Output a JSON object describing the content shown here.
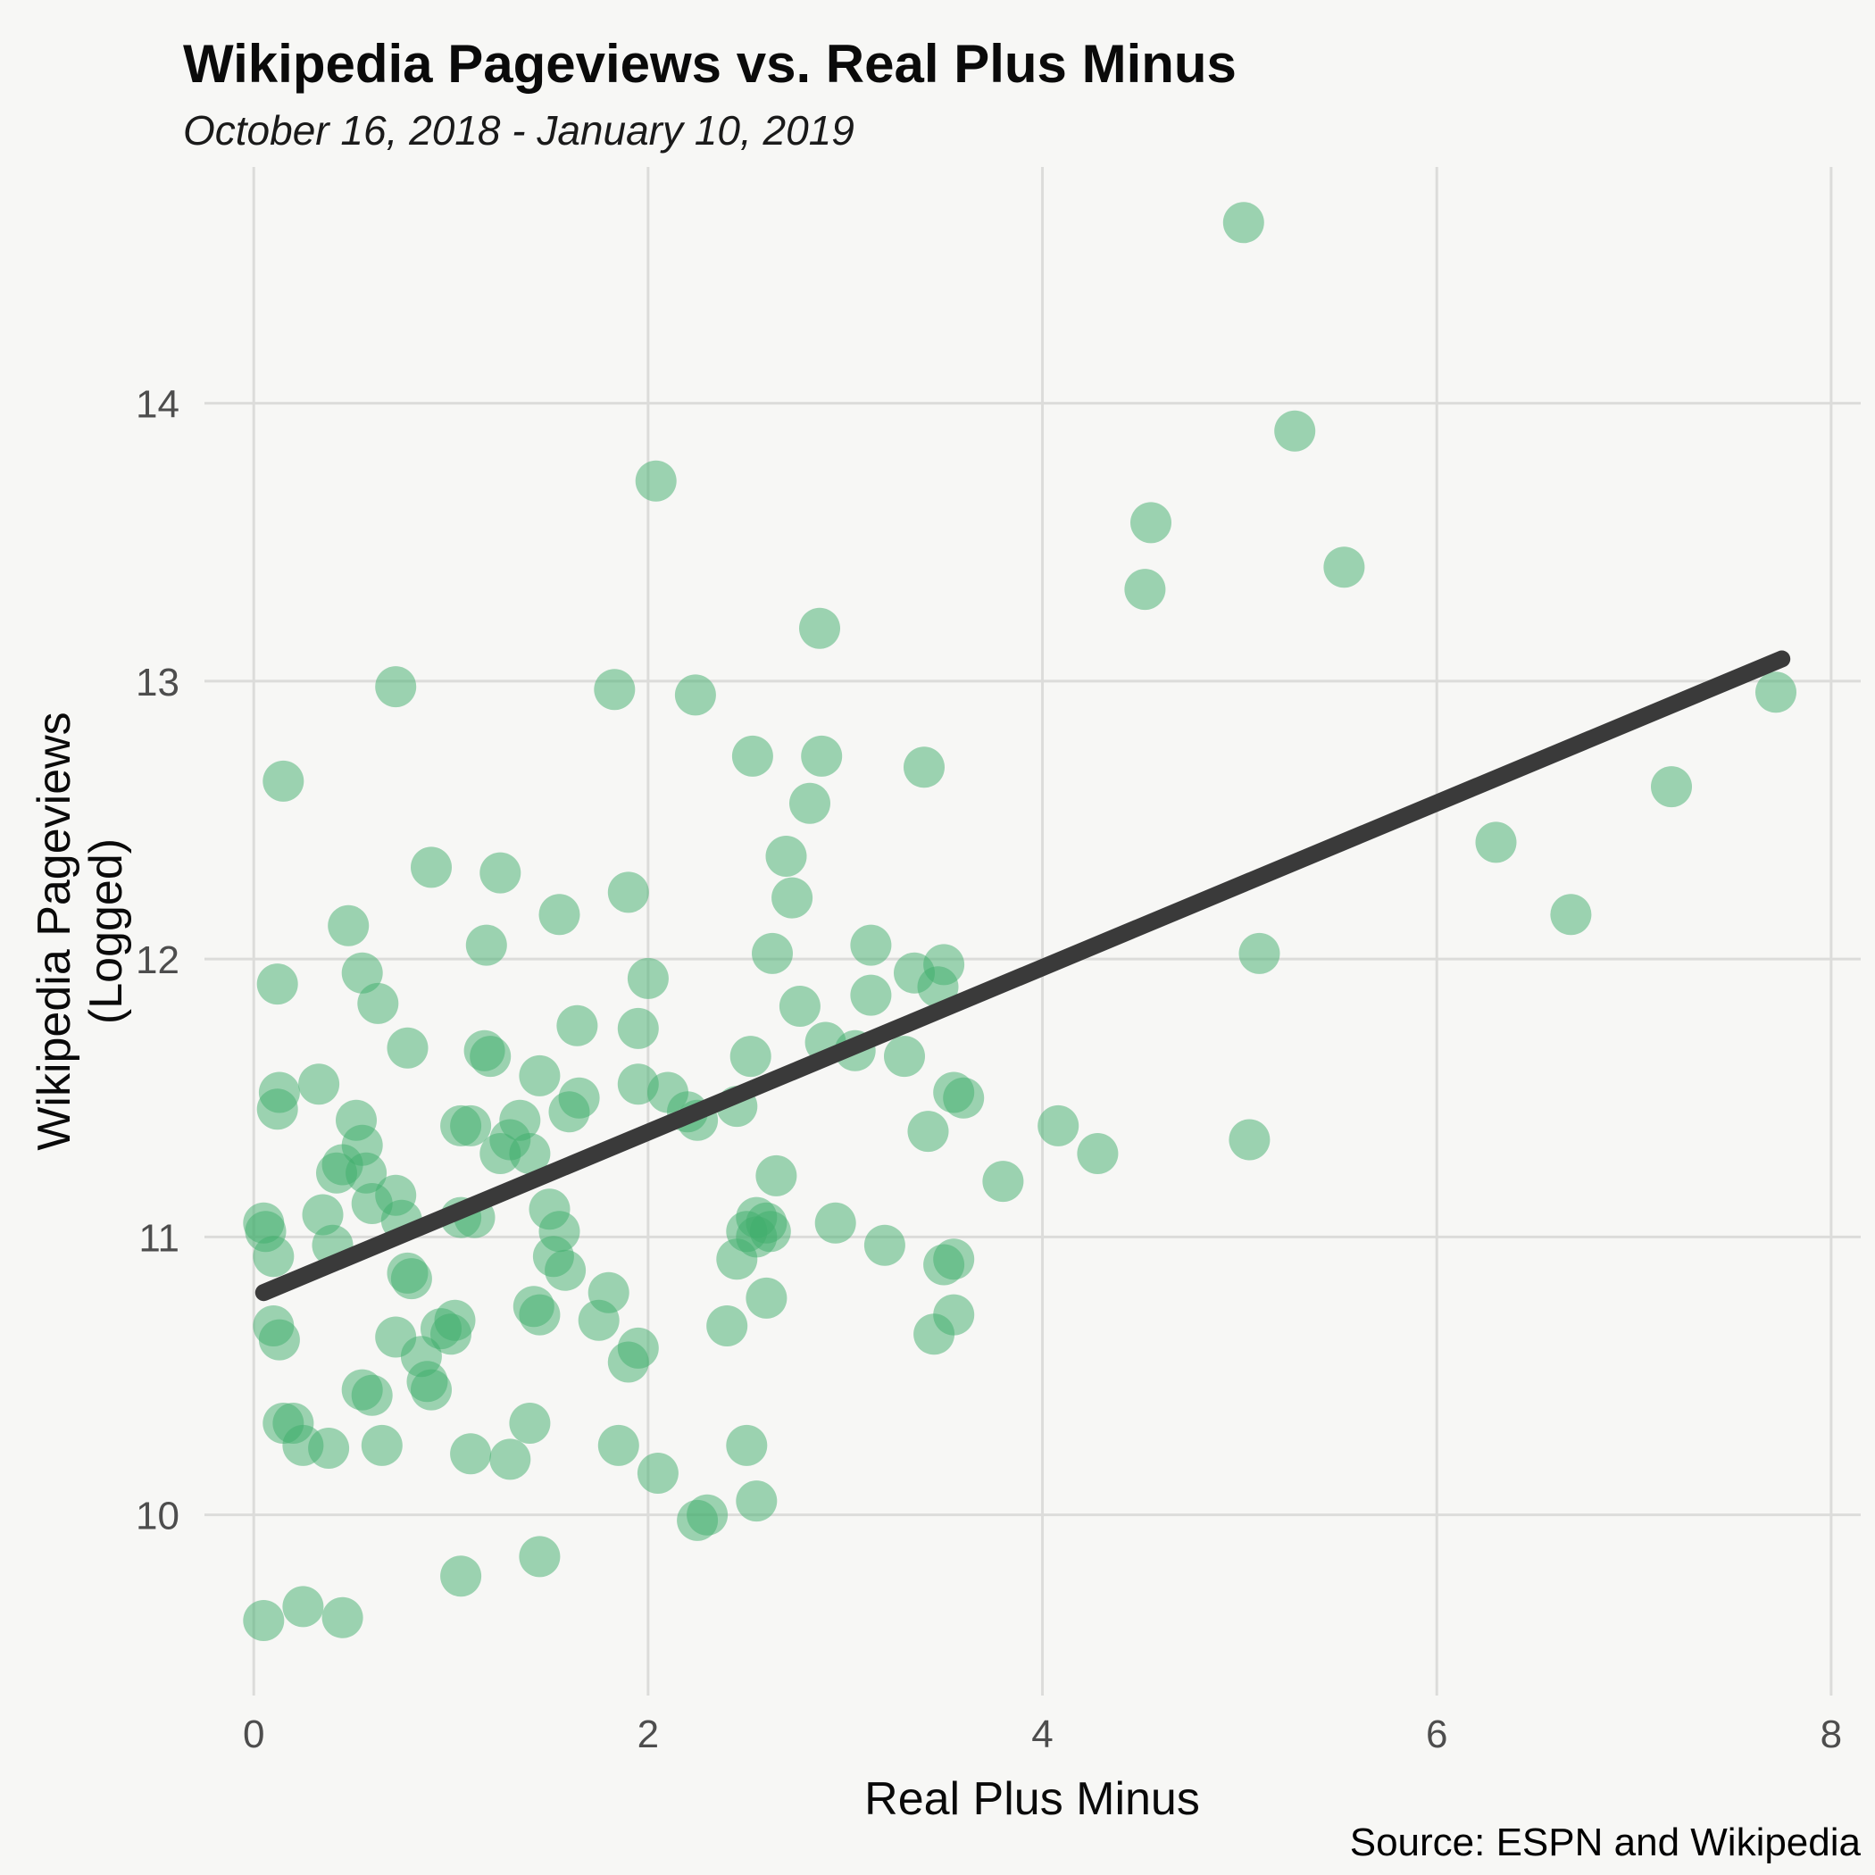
{
  "page": {
    "background": "#f7f7f5",
    "grid_color": "#dcdcda"
  },
  "chart_data": {
    "type": "scatter",
    "title": "Wikipedia Pageviews vs. Real Plus Minus",
    "subtitle": "October 16, 2018 - January 10, 2019",
    "xlabel": "Real Plus Minus",
    "ylabel_line1": "Wikipedia Pageviews",
    "ylabel_line2": "(Logged)",
    "caption": "Source: ESPN and Wikipedia",
    "legend": "none",
    "grid": true,
    "xlim": [
      -0.25,
      8.15
    ],
    "ylim": [
      9.35,
      14.85
    ],
    "x_ticks": [
      0,
      2,
      4,
      6,
      8
    ],
    "y_ticks": [
      10,
      11,
      12,
      13,
      14
    ],
    "point_color": "#3fae6b",
    "point_opacity": 0.5,
    "point_radius": 23,
    "trend_line": {
      "color": "#3a3a3a",
      "width": 19,
      "x_start": 0.05,
      "y_start": 10.8,
      "x_end": 7.75,
      "y_end": 13.08
    },
    "points": [
      [
        5.02,
        14.65
      ],
      [
        5.28,
        13.9
      ],
      [
        2.04,
        13.72
      ],
      [
        4.55,
        13.57
      ],
      [
        5.53,
        13.41
      ],
      [
        4.52,
        13.33
      ],
      [
        2.87,
        13.19
      ],
      [
        0.72,
        12.98
      ],
      [
        1.83,
        12.97
      ],
      [
        2.24,
        12.95
      ],
      [
        7.72,
        12.96
      ],
      [
        2.53,
        12.73
      ],
      [
        2.88,
        12.73
      ],
      [
        3.4,
        12.69
      ],
      [
        0.15,
        12.64
      ],
      [
        7.19,
        12.62
      ],
      [
        2.82,
        12.56
      ],
      [
        6.3,
        12.42
      ],
      [
        0.9,
        12.33
      ],
      [
        1.25,
        12.31
      ],
      [
        2.7,
        12.37
      ],
      [
        2.73,
        12.22
      ],
      [
        1.9,
        12.24
      ],
      [
        6.68,
        12.16
      ],
      [
        1.55,
        12.16
      ],
      [
        0.48,
        12.12
      ],
      [
        1.18,
        12.05
      ],
      [
        3.13,
        12.05
      ],
      [
        2.63,
        12.02
      ],
      [
        5.1,
        12.02
      ],
      [
        3.5,
        11.98
      ],
      [
        0.55,
        11.95
      ],
      [
        0.12,
        11.91
      ],
      [
        2.0,
        11.93
      ],
      [
        0.63,
        11.84
      ],
      [
        2.77,
        11.83
      ],
      [
        3.47,
        11.9
      ],
      [
        3.13,
        11.87
      ],
      [
        1.95,
        11.75
      ],
      [
        1.64,
        11.76
      ],
      [
        0.78,
        11.68
      ],
      [
        1.17,
        11.67
      ],
      [
        2.9,
        11.7
      ],
      [
        3.05,
        11.67
      ],
      [
        3.3,
        11.65
      ],
      [
        1.2,
        11.65
      ],
      [
        2.52,
        11.65
      ],
      [
        1.45,
        11.58
      ],
      [
        0.33,
        11.55
      ],
      [
        1.95,
        11.55
      ],
      [
        2.1,
        11.52
      ],
      [
        3.6,
        11.5
      ],
      [
        1.6,
        11.45
      ],
      [
        1.65,
        11.5
      ],
      [
        0.13,
        11.52
      ],
      [
        0.12,
        11.46
      ],
      [
        2.2,
        11.45
      ],
      [
        2.25,
        11.42
      ],
      [
        0.52,
        11.42
      ],
      [
        1.05,
        11.4
      ],
      [
        1.1,
        11.4
      ],
      [
        1.35,
        11.42
      ],
      [
        4.08,
        11.4
      ],
      [
        2.45,
        11.47
      ],
      [
        0.55,
        11.33
      ],
      [
        1.3,
        11.35
      ],
      [
        1.4,
        11.3
      ],
      [
        5.05,
        11.35
      ],
      [
        4.28,
        11.3
      ],
      [
        0.42,
        11.23
      ],
      [
        0.45,
        11.26
      ],
      [
        0.57,
        11.23
      ],
      [
        1.25,
        11.3
      ],
      [
        2.65,
        11.22
      ],
      [
        3.8,
        11.2
      ],
      [
        0.72,
        11.15
      ],
      [
        0.6,
        11.12
      ],
      [
        0.35,
        11.08
      ],
      [
        1.05,
        11.07
      ],
      [
        1.12,
        11.07
      ],
      [
        0.75,
        11.06
      ],
      [
        2.55,
        11.07
      ],
      [
        0.05,
        11.05
      ],
      [
        0.06,
        11.02
      ],
      [
        2.6,
        11.05
      ],
      [
        2.62,
        11.02
      ],
      [
        1.5,
        11.1
      ],
      [
        1.55,
        11.02
      ],
      [
        2.55,
        11.0
      ],
      [
        3.2,
        10.97
      ],
      [
        0.4,
        10.97
      ],
      [
        0.1,
        10.93
      ],
      [
        1.52,
        10.93
      ],
      [
        2.45,
        10.92
      ],
      [
        3.55,
        10.92
      ],
      [
        1.58,
        10.88
      ],
      [
        0.78,
        10.87
      ],
      [
        0.8,
        10.85
      ],
      [
        1.42,
        10.75
      ],
      [
        1.45,
        10.72
      ],
      [
        3.55,
        10.72
      ],
      [
        2.6,
        10.78
      ],
      [
        0.1,
        10.68
      ],
      [
        0.95,
        10.67
      ],
      [
        1.0,
        10.65
      ],
      [
        1.02,
        10.7
      ],
      [
        0.13,
        10.63
      ],
      [
        0.72,
        10.64
      ],
      [
        1.75,
        10.7
      ],
      [
        1.8,
        10.8
      ],
      [
        2.4,
        10.68
      ],
      [
        0.85,
        10.57
      ],
      [
        1.9,
        10.55
      ],
      [
        1.95,
        10.6
      ],
      [
        0.88,
        10.48
      ],
      [
        0.9,
        10.45
      ],
      [
        0.55,
        10.45
      ],
      [
        0.6,
        10.43
      ],
      [
        0.15,
        10.33
      ],
      [
        0.2,
        10.33
      ],
      [
        1.4,
        10.33
      ],
      [
        0.25,
        10.25
      ],
      [
        0.38,
        10.24
      ],
      [
        0.65,
        10.25
      ],
      [
        1.85,
        10.25
      ],
      [
        1.1,
        10.22
      ],
      [
        1.3,
        10.2
      ],
      [
        2.5,
        10.25
      ],
      [
        2.05,
        10.15
      ],
      [
        2.3,
        10.0
      ],
      [
        2.25,
        9.98
      ],
      [
        2.55,
        10.05
      ],
      [
        1.45,
        9.85
      ],
      [
        1.05,
        9.78
      ],
      [
        0.05,
        9.62
      ],
      [
        0.25,
        9.67
      ],
      [
        0.45,
        9.63
      ],
      [
        3.42,
        11.38
      ],
      [
        3.55,
        11.52
      ],
      [
        2.95,
        11.05
      ],
      [
        2.5,
        11.02
      ],
      [
        3.45,
        10.65
      ],
      [
        3.5,
        10.9
      ],
      [
        3.35,
        11.95
      ]
    ]
  }
}
